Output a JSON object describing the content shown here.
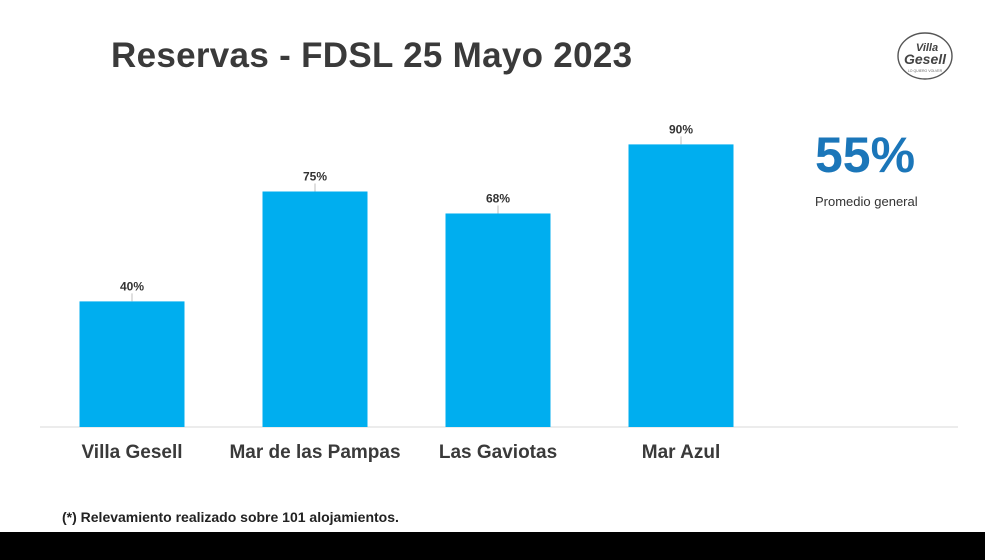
{
  "header": {
    "title": "Reservas - FDSL 25 Mayo 2023"
  },
  "logo": {
    "line1": "Villa",
    "line2": "Gesell",
    "tagline": "LO QUIERO VOLVER"
  },
  "summary": {
    "value": "55%",
    "label": "Promedio general"
  },
  "footnote": "(*) Relevamiento realizado sobre 101 alojamientos.",
  "chart_data": {
    "type": "bar",
    "categories": [
      "Villa Gesell",
      "Mar de las Pampas",
      "Las Gaviotas",
      "Mar Azul"
    ],
    "values": [
      40,
      75,
      68,
      90
    ],
    "value_labels": [
      "40%",
      "75%",
      "68%",
      "90%"
    ],
    "ylim": [
      0,
      100
    ],
    "grid": false,
    "bar_color": "#00aeef"
  },
  "colors": {
    "accent": "#1b76b9",
    "bar": "#00aeef",
    "title": "#3a3a3a"
  }
}
